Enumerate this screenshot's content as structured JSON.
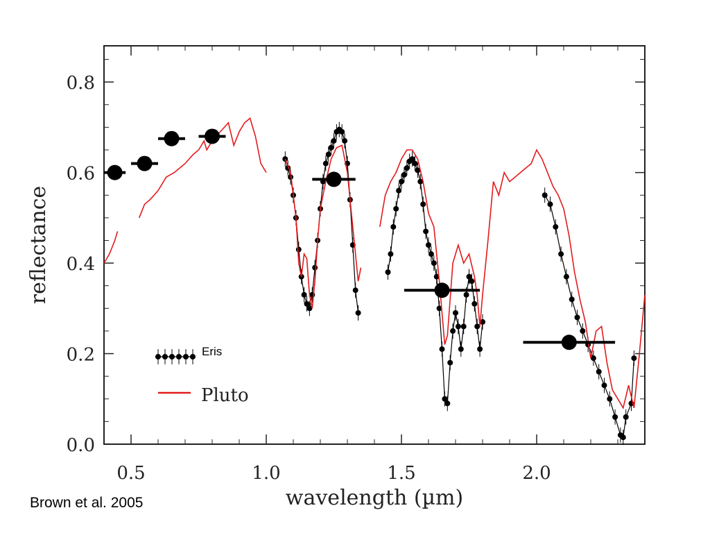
{
  "chart_data": {
    "type": "scatter",
    "xlabel": "wavelength (µm)",
    "ylabel": "reflectance",
    "xlim": [
      0.4,
      2.4
    ],
    "ylim": [
      0.0,
      0.88
    ],
    "x_ticks": [
      0.5,
      1.0,
      1.5,
      2.0
    ],
    "y_ticks": [
      0.0,
      0.2,
      0.4,
      0.6,
      0.8
    ],
    "x_tick_labels": [
      "0.5",
      "1.0",
      "1.5",
      "2.0"
    ],
    "y_tick_labels": [
      "0.0",
      "0.2",
      "0.4",
      "0.6",
      "0.8"
    ],
    "legend": {
      "position": "bottom-left",
      "entries": [
        "Eris",
        "Pluto"
      ]
    },
    "series": [
      {
        "name": "Eris",
        "kind": "photometry",
        "color": "#000000",
        "points": [
          {
            "x": 0.44,
            "y": 0.6,
            "xerr": 0.04
          },
          {
            "x": 0.55,
            "y": 0.62,
            "xerr": 0.05
          },
          {
            "x": 0.65,
            "y": 0.675,
            "xerr": 0.05
          },
          {
            "x": 0.8,
            "y": 0.68,
            "xerr": 0.05
          },
          {
            "x": 1.25,
            "y": 0.585,
            "xerr": 0.08
          },
          {
            "x": 1.65,
            "y": 0.34,
            "xerr": 0.14
          },
          {
            "x": 2.12,
            "y": 0.225,
            "xerr": 0.17
          }
        ]
      },
      {
        "name": "Eris",
        "kind": "spectrum",
        "color": "#000000",
        "segments": [
          [
            [
              1.07,
              0.63
            ],
            [
              1.08,
              0.61
            ],
            [
              1.09,
              0.59
            ],
            [
              1.1,
              0.55
            ],
            [
              1.11,
              0.5
            ],
            [
              1.12,
              0.43
            ],
            [
              1.13,
              0.37
            ],
            [
              1.14,
              0.33
            ],
            [
              1.15,
              0.31
            ],
            [
              1.16,
              0.3
            ],
            [
              1.17,
              0.33
            ],
            [
              1.18,
              0.39
            ],
            [
              1.19,
              0.45
            ],
            [
              1.2,
              0.52
            ],
            [
              1.21,
              0.58
            ],
            [
              1.22,
              0.62
            ],
            [
              1.23,
              0.64
            ],
            [
              1.24,
              0.655
            ],
            [
              1.25,
              0.67
            ],
            [
              1.26,
              0.69
            ],
            [
              1.27,
              0.695
            ],
            [
              1.28,
              0.69
            ],
            [
              1.29,
              0.67
            ],
            [
              1.3,
              0.62
            ],
            [
              1.31,
              0.54
            ],
            [
              1.32,
              0.44
            ],
            [
              1.33,
              0.34
            ],
            [
              1.34,
              0.29
            ]
          ],
          [
            [
              1.45,
              0.38
            ],
            [
              1.46,
              0.42
            ],
            [
              1.47,
              0.48
            ],
            [
              1.48,
              0.52
            ],
            [
              1.49,
              0.56
            ],
            [
              1.5,
              0.58
            ],
            [
              1.51,
              0.595
            ],
            [
              1.52,
              0.61
            ],
            [
              1.53,
              0.625
            ],
            [
              1.54,
              0.63
            ],
            [
              1.55,
              0.62
            ],
            [
              1.56,
              0.605
            ],
            [
              1.57,
              0.58
            ],
            [
              1.58,
              0.53
            ],
            [
              1.59,
              0.47
            ],
            [
              1.6,
              0.44
            ],
            [
              1.61,
              0.42
            ],
            [
              1.62,
              0.4
            ],
            [
              1.63,
              0.37
            ],
            [
              1.64,
              0.3
            ],
            [
              1.65,
              0.21
            ],
            [
              1.66,
              0.1
            ],
            [
              1.67,
              0.09
            ],
            [
              1.68,
              0.18
            ],
            [
              1.69,
              0.25
            ],
            [
              1.7,
              0.29
            ],
            [
              1.71,
              0.26
            ],
            [
              1.72,
              0.21
            ],
            [
              1.73,
              0.26
            ],
            [
              1.74,
              0.33
            ],
            [
              1.75,
              0.37
            ],
            [
              1.76,
              0.36
            ],
            [
              1.77,
              0.31
            ],
            [
              1.78,
              0.26
            ],
            [
              1.79,
              0.21
            ],
            [
              1.8,
              0.27
            ]
          ],
          [
            [
              2.03,
              0.55
            ],
            [
              2.05,
              0.53
            ],
            [
              2.07,
              0.48
            ],
            [
              2.09,
              0.42
            ],
            [
              2.11,
              0.37
            ],
            [
              2.13,
              0.32
            ],
            [
              2.15,
              0.28
            ],
            [
              2.17,
              0.25
            ],
            [
              2.19,
              0.22
            ],
            [
              2.21,
              0.19
            ],
            [
              2.23,
              0.16
            ],
            [
              2.25,
              0.13
            ],
            [
              2.27,
              0.1
            ],
            [
              2.29,
              0.06
            ],
            [
              2.31,
              0.02
            ],
            [
              2.32,
              0.015
            ],
            [
              2.33,
              0.06
            ],
            [
              2.35,
              0.09
            ],
            [
              2.36,
              0.19
            ]
          ]
        ]
      },
      {
        "name": "Pluto",
        "kind": "spectrum",
        "color": "#e31a1c",
        "segments": [
          [
            [
              0.4,
              0.4
            ],
            [
              0.42,
              0.42
            ],
            [
              0.44,
              0.45
            ],
            [
              0.45,
              0.47
            ]
          ],
          [
            [
              0.53,
              0.5
            ],
            [
              0.55,
              0.53
            ],
            [
              0.57,
              0.54
            ],
            [
              0.6,
              0.56
            ],
            [
              0.63,
              0.59
            ],
            [
              0.66,
              0.6
            ],
            [
              0.7,
              0.62
            ],
            [
              0.73,
              0.64
            ],
            [
              0.75,
              0.65
            ],
            [
              0.77,
              0.67
            ],
            [
              0.78,
              0.65
            ],
            [
              0.8,
              0.67
            ],
            [
              0.83,
              0.69
            ],
            [
              0.86,
              0.71
            ],
            [
              0.88,
              0.66
            ],
            [
              0.9,
              0.69
            ],
            [
              0.92,
              0.71
            ],
            [
              0.94,
              0.72
            ],
            [
              0.96,
              0.68
            ],
            [
              0.98,
              0.62
            ],
            [
              1.0,
              0.6
            ]
          ],
          [
            [
              1.07,
              0.63
            ],
            [
              1.09,
              0.6
            ],
            [
              1.11,
              0.5
            ],
            [
              1.12,
              0.4
            ],
            [
              1.13,
              0.37
            ],
            [
              1.14,
              0.42
            ],
            [
              1.15,
              0.41
            ],
            [
              1.16,
              0.33
            ],
            [
              1.17,
              0.3
            ],
            [
              1.18,
              0.36
            ],
            [
              1.19,
              0.45
            ],
            [
              1.2,
              0.52
            ],
            [
              1.22,
              0.58
            ],
            [
              1.24,
              0.63
            ],
            [
              1.26,
              0.655
            ],
            [
              1.28,
              0.66
            ],
            [
              1.3,
              0.6
            ],
            [
              1.32,
              0.48
            ],
            [
              1.34,
              0.36
            ],
            [
              1.35,
              0.39
            ]
          ],
          [
            [
              1.42,
              0.48
            ],
            [
              1.44,
              0.55
            ],
            [
              1.46,
              0.58
            ],
            [
              1.48,
              0.6
            ],
            [
              1.5,
              0.63
            ],
            [
              1.52,
              0.65
            ],
            [
              1.54,
              0.65
            ],
            [
              1.56,
              0.63
            ],
            [
              1.58,
              0.58
            ],
            [
              1.6,
              0.51
            ],
            [
              1.62,
              0.48
            ],
            [
              1.64,
              0.36
            ],
            [
              1.66,
              0.22
            ],
            [
              1.67,
              0.24
            ],
            [
              1.69,
              0.4
            ],
            [
              1.71,
              0.44
            ],
            [
              1.73,
              0.4
            ],
            [
              1.75,
              0.42
            ],
            [
              1.77,
              0.37
            ],
            [
              1.78,
              0.33
            ],
            [
              1.79,
              0.26
            ],
            [
              1.8,
              0.33
            ],
            [
              1.82,
              0.45
            ],
            [
              1.84,
              0.58
            ],
            [
              1.86,
              0.55
            ],
            [
              1.88,
              0.6
            ],
            [
              1.9,
              0.58
            ],
            [
              1.92,
              0.59
            ],
            [
              1.94,
              0.6
            ],
            [
              1.96,
              0.61
            ],
            [
              1.98,
              0.62
            ],
            [
              2.0,
              0.65
            ],
            [
              2.02,
              0.63
            ],
            [
              2.04,
              0.6
            ],
            [
              2.06,
              0.57
            ],
            [
              2.08,
              0.55
            ],
            [
              2.1,
              0.52
            ],
            [
              2.12,
              0.46
            ],
            [
              2.14,
              0.38
            ],
            [
              2.16,
              0.32
            ],
            [
              2.18,
              0.27
            ],
            [
              2.2,
              0.19
            ],
            [
              2.22,
              0.25
            ],
            [
              2.24,
              0.26
            ],
            [
              2.26,
              0.18
            ],
            [
              2.28,
              0.12
            ],
            [
              2.3,
              0.1
            ],
            [
              2.32,
              0.08
            ],
            [
              2.34,
              0.13
            ],
            [
              2.36,
              0.08
            ],
            [
              2.38,
              0.2
            ],
            [
              2.4,
              0.33
            ]
          ]
        ]
      }
    ]
  },
  "credit": "Brown et al. 2005"
}
